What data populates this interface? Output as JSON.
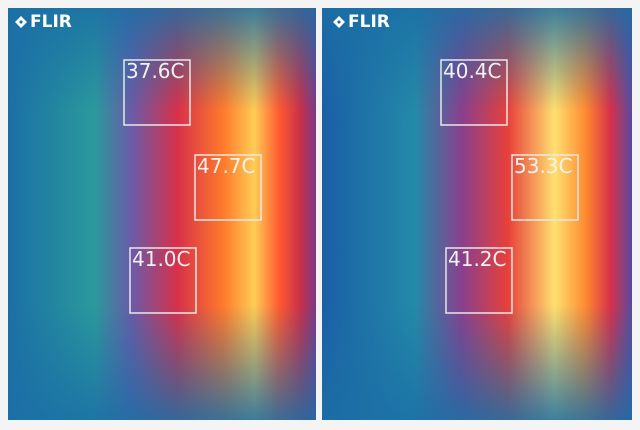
{
  "panels": [
    {
      "logo": "FLIR",
      "readings": [
        {
          "label": "37.6C"
        },
        {
          "label": "47.7C"
        },
        {
          "label": "41.0C"
        }
      ]
    },
    {
      "logo": "FLIR",
      "readings": [
        {
          "label": "40.4C"
        },
        {
          "label": "53.3C"
        },
        {
          "label": "41.2C"
        }
      ]
    }
  ]
}
